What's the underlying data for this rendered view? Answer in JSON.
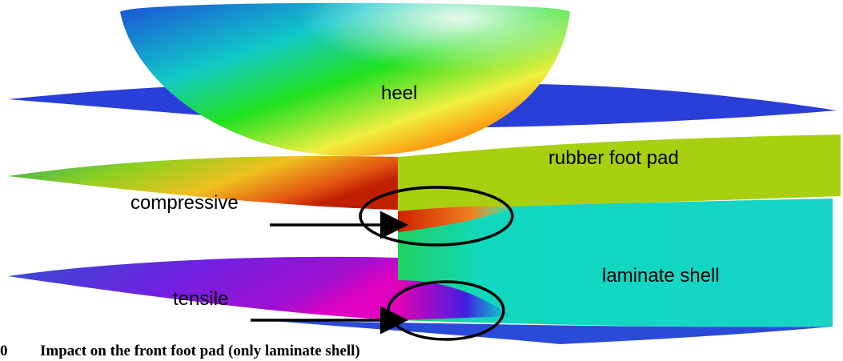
{
  "labels": {
    "heel": "heel",
    "rubber_foot_pad": "rubber foot pad",
    "compressive": "compressive",
    "laminate_shell": "laminate shell",
    "tensile": "tensile"
  },
  "caption": {
    "number": "0",
    "text": "Impact on the front foot pad (only laminate shell)"
  }
}
